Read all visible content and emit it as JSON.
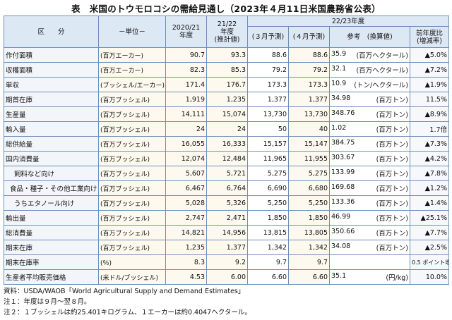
{
  "title": "表　米国のトウモロコシの需給見通し（2023年４月11日米国農務省公表）",
  "header": {
    "category": "区　　分",
    "unit": "－単位－",
    "col1": "2020/21\n年度",
    "col2": "21/22\n年度\n(推計値)",
    "group": "22/23年度",
    "march": "(３月予測)",
    "april": "(４月予測)",
    "reference": "参考　(換算値)",
    "change": "前年度比\n(増減率)"
  },
  "rows": [
    {
      "label": "作付面積",
      "unit": "(百万エーカー)",
      "y2021": "90.7",
      "y2122": "93.3",
      "mar": "88.6",
      "apr": "88.6",
      "ref_val": "35.9",
      "ref_unit": "(百万ヘクタール)",
      "change": "▲5.0%"
    },
    {
      "label": "収穫面積",
      "unit": "(百万エーカー)",
      "y2021": "82.3",
      "y2122": "85.3",
      "mar": "79.2",
      "apr": "79.2",
      "ref_val": "32.1",
      "ref_unit": "(百万ヘクタール)",
      "change": "▲7.2%"
    },
    {
      "label": "単収",
      "unit": "(ブッシェル/エーカー)",
      "y2021": "171.4",
      "y2122": "176.7",
      "mar": "173.3",
      "apr": "173.3",
      "ref_val": "10.9",
      "ref_unit": "(トン/ヘクタール)",
      "change": "▲1.9%"
    },
    {
      "label": "期首在庫",
      "unit": "(百万ブッシェル)",
      "y2021": "1,919",
      "y2122": "1,235",
      "mar": "1,377",
      "apr": "1,377",
      "ref_val": "34.98",
      "ref_unit": "(百万トン)",
      "change": "11.5%"
    },
    {
      "label": "生産量",
      "unit": "(百万ブッシェル)",
      "y2021": "14,111",
      "y2122": "15,074",
      "mar": "13,730",
      "apr": "13,730",
      "ref_val": "348.76",
      "ref_unit": "(百万トン)",
      "change": "▲8.9%"
    },
    {
      "label": "輸入量",
      "unit": "(百万ブッシェル)",
      "y2021": "24",
      "y2122": "24",
      "mar": "50",
      "apr": "40",
      "ref_val": "1.02",
      "ref_unit": "(百万トン)",
      "change": "1.7倍"
    },
    {
      "label": "総供給量",
      "unit": "(百万ブッシェル)",
      "y2021": "16,055",
      "y2122": "16,333",
      "mar": "15,157",
      "apr": "15,147",
      "ref_val": "384.75",
      "ref_unit": "(百万トン)",
      "change": "▲7.3%"
    },
    {
      "label": "国内消費量",
      "unit": "(百万ブッシェル)",
      "y2021": "12,074",
      "y2122": "12,484",
      "mar": "11,965",
      "apr": "11,955",
      "ref_val": "303.67",
      "ref_unit": "(百万トン)",
      "change": "▲4.2%"
    },
    {
      "label": "飼料など向け",
      "unit": "(百万ブッシェル)",
      "y2021": "5,607",
      "y2122": "5,721",
      "mar": "5,275",
      "apr": "5,275",
      "ref_val": "133.99",
      "ref_unit": "(百万トン)",
      "change": "▲7.8%"
    },
    {
      "label": "食品・種子・その他工業向け",
      "unit": "(百万ブッシェル)",
      "y2021": "6,467",
      "y2122": "6,764",
      "mar": "6,690",
      "apr": "6,680",
      "ref_val": "169.68",
      "ref_unit": "(百万トン)",
      "change": "▲1.2%"
    },
    {
      "label": "うちエタノール向け",
      "unit": "(百万ブッシェル)",
      "y2021": "5,028",
      "y2122": "5,326",
      "mar": "5,250",
      "apr": "5,250",
      "ref_val": "133.36",
      "ref_unit": "(百万トン)",
      "change": "▲1.4%"
    },
    {
      "label": "輸出量",
      "unit": "(百万ブッシェル)",
      "y2021": "2,747",
      "y2122": "2,471",
      "mar": "1,850",
      "apr": "1,850",
      "ref_val": "46.99",
      "ref_unit": "(百万トン)",
      "change": "▲25.1%"
    },
    {
      "label": "総消費量",
      "unit": "(百万ブッシェル)",
      "y2021": "14,821",
      "y2122": "14,956",
      "mar": "13,815",
      "apr": "13,805",
      "ref_val": "350.66",
      "ref_unit": "(百万トン)",
      "change": "▲7.7%"
    },
    {
      "label": "期末在庫",
      "unit": "(百万ブッシェル)",
      "y2021": "1,235",
      "y2122": "1,377",
      "mar": "1,342",
      "apr": "1,342",
      "ref_val": "34.08",
      "ref_unit": "(百万トン)",
      "change": "▲2.5%"
    },
    {
      "label": "期末在庫率",
      "unit": "(％)",
      "y2021": "8.3",
      "y2122": "9.2",
      "mar": "9.7",
      "apr": "9.7",
      "ref_val": "",
      "ref_unit": "",
      "change": "0.5 ポイント増"
    },
    {
      "label": "生産者平均販売価格",
      "unit": "(米ドル/ブッシェル)",
      "y2021": "4.53",
      "y2122": "6.00",
      "mar": "6.60",
      "apr": "6.60",
      "ref_val": "35.1",
      "ref_unit": "(円/kg)",
      "change": "10.0%"
    }
  ],
  "notes": {
    "source": "資料：USDA/WAOB「World Agricultural Supply and Demand Estimates」",
    "note1": "注１：年度は９月～翌８月。",
    "note2": "注２：１ブッシェルは約25.401キログラム、１エーカーは約0.4047ヘクタール。"
  }
}
